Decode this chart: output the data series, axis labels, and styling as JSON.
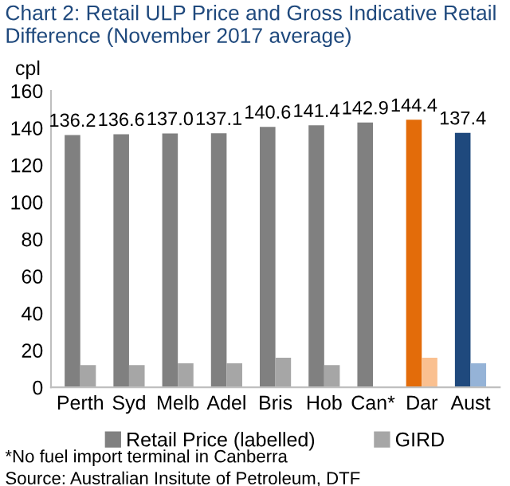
{
  "chart_data": {
    "type": "bar",
    "title": "Chart 2: Retail ULP Price and Gross Indicative Retail Difference (November 2017 average)",
    "ylabel": "cpl",
    "categories": [
      "Perth",
      "Syd",
      "Melb",
      "Adel",
      "Bris",
      "Hob",
      "Can*",
      "Dar",
      "Aust"
    ],
    "series": [
      {
        "name": "Retail Price (labelled)",
        "color": "#808080",
        "colors": [
          "#808080",
          "#808080",
          "#808080",
          "#808080",
          "#808080",
          "#808080",
          "#808080",
          "#e36c0a",
          "#1f497d"
        ],
        "values": [
          136.2,
          136.6,
          137.0,
          137.1,
          140.6,
          141.4,
          142.9,
          144.4,
          137.4
        ],
        "value_labels": [
          "136.2",
          "136.6",
          "137.0",
          "137.1",
          "140.6",
          "141.4",
          "142.9",
          "144.4",
          "137.4"
        ]
      },
      {
        "name": "GIRD",
        "color": "#a6a6a6",
        "colors": [
          "#a6a6a6",
          "#a6a6a6",
          "#a6a6a6",
          "#a6a6a6",
          "#a6a6a6",
          "#a6a6a6",
          "#a6a6a6",
          "#fac090",
          "#95b3d7"
        ],
        "values": [
          12,
          12,
          13,
          13,
          16,
          12,
          null,
          16,
          13
        ]
      }
    ],
    "ylim": [
      0,
      160
    ],
    "yticks": [
      0,
      20,
      40,
      60,
      80,
      100,
      120,
      140,
      160
    ],
    "grid": false,
    "legend": "bottom",
    "annotations": [
      "*No fuel import terminal in Canberra",
      "Source: Australian Insitute of Petroleum, DTF"
    ]
  }
}
